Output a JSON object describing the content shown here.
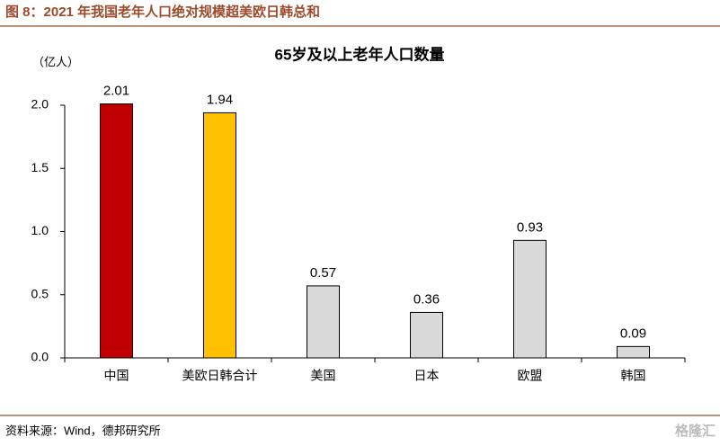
{
  "header": {
    "title": "图 8：2021 年我国老年人口绝对规模超美欧日韩总和"
  },
  "chart_data": {
    "type": "bar",
    "title": "65岁及以上老年人口数量",
    "y_unit": "（亿人）",
    "categories": [
      "中国",
      "美欧日韩合计",
      "美国",
      "日本",
      "欧盟",
      "韩国"
    ],
    "values": [
      2.01,
      1.94,
      0.57,
      0.36,
      0.93,
      0.09
    ],
    "colors": [
      "#c00000",
      "#ffc000",
      "#d9d9d9",
      "#d9d9d9",
      "#d9d9d9",
      "#d9d9d9"
    ],
    "ylim": [
      0,
      2.0
    ],
    "yticks": [
      {
        "value": 0,
        "label": "0.0"
      },
      0.5,
      {
        "value": 1,
        "label": "1.0"
      },
      1.5,
      {
        "value": 2,
        "label": "2.0"
      }
    ],
    "grid": false
  },
  "footer": {
    "source": "资料来源：Wind，德邦研究所",
    "watermark": "格隆汇"
  }
}
